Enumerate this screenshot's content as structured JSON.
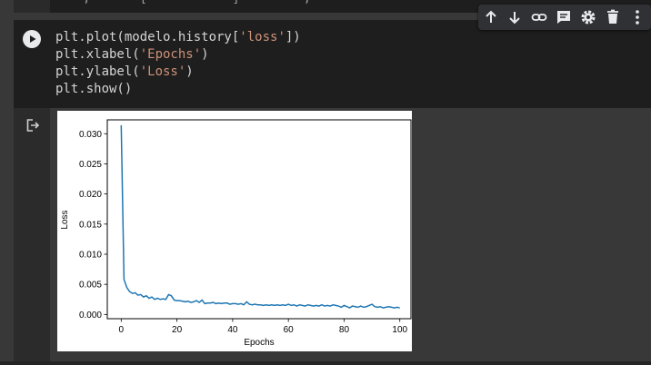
{
  "previous_cell": {
    "text": "    ,       [            ]         ,    "
  },
  "toolbar": {
    "icons": [
      "arrow-up-icon",
      "arrow-down-icon",
      "link-icon",
      "comment-icon",
      "gear-icon",
      "trash-icon",
      "more-vert-icon"
    ]
  },
  "code_cell": {
    "lines": [
      {
        "pre": "plt.plot(modelo.history[",
        "str": "'loss'",
        "post": "])"
      },
      {
        "pre": "plt.xlabel(",
        "str": "'Epochs'",
        "post": ")"
      },
      {
        "pre": "plt.ylabel(",
        "str": "'Loss'",
        "post": ")"
      },
      {
        "pre": "plt.show()",
        "str": "",
        "post": ""
      }
    ]
  },
  "chart_data": {
    "type": "line",
    "xlabel": "Epochs",
    "ylabel": "Loss",
    "xlim": [
      -5,
      104
    ],
    "ylim": [
      -0.0007,
      0.0323
    ],
    "xticks": [
      "0",
      "20",
      "40",
      "60",
      "80",
      "100"
    ],
    "yticks": [
      "0.000",
      "0.005",
      "0.010",
      "0.015",
      "0.020",
      "0.025",
      "0.030"
    ],
    "series_color": "#1f77b4",
    "x": [
      0,
      1,
      2,
      3,
      4,
      5,
      6,
      7,
      8,
      9,
      10,
      11,
      12,
      13,
      14,
      15,
      16,
      17,
      18,
      19,
      20,
      21,
      22,
      23,
      24,
      25,
      26,
      27,
      28,
      29,
      30,
      31,
      32,
      33,
      34,
      35,
      36,
      37,
      38,
      39,
      40,
      41,
      42,
      43,
      44,
      45,
      46,
      47,
      48,
      49,
      50,
      51,
      52,
      53,
      54,
      55,
      56,
      57,
      58,
      59,
      60,
      61,
      62,
      63,
      64,
      65,
      66,
      67,
      68,
      69,
      70,
      71,
      72,
      73,
      74,
      75,
      76,
      77,
      78,
      79,
      80,
      81,
      82,
      83,
      84,
      85,
      86,
      87,
      88,
      89,
      90,
      91,
      92,
      93,
      94,
      95,
      96,
      97,
      98,
      99,
      100
    ],
    "y": [
      0.0314,
      0.0058,
      0.0045,
      0.0038,
      0.0035,
      0.0036,
      0.0032,
      0.0033,
      0.0029,
      0.0031,
      0.0027,
      0.0029,
      0.0025,
      0.0027,
      0.0025,
      0.0026,
      0.0025,
      0.0033,
      0.0031,
      0.0024,
      0.0023,
      0.0023,
      0.0022,
      0.0021,
      0.0022,
      0.002,
      0.0021,
      0.0023,
      0.002,
      0.0024,
      0.0018,
      0.0019,
      0.0019,
      0.002,
      0.0018,
      0.0019,
      0.0018,
      0.0019,
      0.0019,
      0.0017,
      0.0018,
      0.0018,
      0.0017,
      0.0018,
      0.0016,
      0.0021,
      0.0017,
      0.0016,
      0.0017,
      0.0016,
      0.0016,
      0.0015,
      0.0016,
      0.0015,
      0.0016,
      0.0015,
      0.0016,
      0.0015,
      0.0016,
      0.0015,
      0.0017,
      0.0015,
      0.0016,
      0.0014,
      0.0016,
      0.0015,
      0.0014,
      0.0016,
      0.0015,
      0.0014,
      0.0015,
      0.0014,
      0.0016,
      0.0014,
      0.0015,
      0.0014,
      0.0016,
      0.0015,
      0.0014,
      0.0012,
      0.0015,
      0.0013,
      0.0011,
      0.0014,
      0.0013,
      0.0012,
      0.0014,
      0.0012,
      0.0013,
      0.0015,
      0.0017,
      0.0013,
      0.0012,
      0.0013,
      0.0011,
      0.0012,
      0.0013,
      0.0012,
      0.0011,
      0.0012,
      0.0011
    ]
  }
}
